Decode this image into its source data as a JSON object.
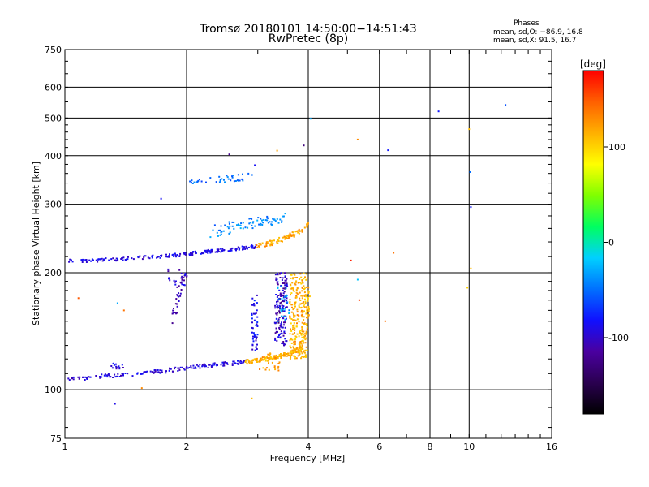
{
  "chart_data": {
    "type": "scatter",
    "title": "Tromsø 20180101 14:50:00−14:51:43",
    "subtitle": "RwPretec (8p)",
    "xlabel": "Frequency [MHz]",
    "ylabel": "Stationary phase Virtual Height [km]",
    "x_scale": "log",
    "y_scale": "log",
    "xlim": [
      1,
      16
    ],
    "ylim": [
      75,
      750
    ],
    "x_ticks": [
      1,
      2,
      4,
      6,
      8,
      10,
      16
    ],
    "y_ticks": [
      75,
      100,
      200,
      300,
      400,
      500,
      600,
      750
    ],
    "grid": true,
    "colorbar": {
      "label": "[deg]",
      "range": [
        -180,
        180
      ],
      "ticks": [
        -100,
        0,
        100
      ],
      "colors": [
        "#000000",
        "#2a0050",
        "#4a00a0",
        "#1010ff",
        "#0070ff",
        "#00d0ff",
        "#00ff60",
        "#80ff00",
        "#ffff00",
        "#ffb000",
        "#ff6000",
        "#ff0000"
      ]
    },
    "stats_title": "Phases",
    "stats": [
      "mean, sd,O: −86.9, 16.8",
      "mean, sd,X:  91.5, 16.7"
    ],
    "traces": [
      {
        "kind": "curve",
        "phase": -95,
        "jitter": 0.012,
        "per_mhz": 90,
        "points": [
          [
            1.0,
            106
          ],
          [
            1.2,
            108
          ],
          [
            1.5,
            110
          ],
          [
            1.8,
            112
          ],
          [
            2.0,
            114
          ],
          [
            2.4,
            116
          ],
          [
            2.8,
            118
          ]
        ]
      },
      {
        "kind": "curve",
        "phase": 115,
        "jitter": 0.012,
        "per_mhz": 120,
        "points": [
          [
            2.8,
            118
          ],
          [
            3.0,
            119
          ],
          [
            3.3,
            121
          ],
          [
            3.6,
            124
          ],
          [
            3.85,
            128
          ],
          [
            3.95,
            140
          ],
          [
            4.0,
            160
          ],
          [
            4.02,
            185
          ]
        ]
      },
      {
        "kind": "curve",
        "phase": -92,
        "jitter": 0.01,
        "per_mhz": 90,
        "points": [
          [
            1.0,
            214
          ],
          [
            1.3,
            216
          ],
          [
            1.6,
            219
          ],
          [
            1.9,
            222
          ],
          [
            2.2,
            226
          ],
          [
            2.6,
            230
          ],
          [
            3.0,
            234
          ]
        ]
      },
      {
        "kind": "curve",
        "phase": 120,
        "jitter": 0.015,
        "per_mhz": 80,
        "points": [
          [
            3.0,
            234
          ],
          [
            3.3,
            240
          ],
          [
            3.6,
            248
          ],
          [
            3.9,
            258
          ],
          [
            4.0,
            265
          ]
        ]
      },
      {
        "kind": "curve",
        "phase": -120,
        "jitter": 0.03,
        "per_mhz": 100,
        "points": [
          [
            3.35,
            145
          ],
          [
            3.4,
            160
          ],
          [
            3.45,
            175
          ],
          [
            3.5,
            185
          ],
          [
            3.55,
            195
          ]
        ]
      },
      {
        "kind": "curve",
        "phase": -40,
        "jitter": 0.03,
        "per_mhz": 60,
        "points": [
          [
            2.3,
            250
          ],
          [
            2.6,
            262
          ],
          [
            2.9,
            268
          ],
          [
            3.2,
            272
          ],
          [
            3.5,
            278
          ]
        ]
      },
      {
        "kind": "curve",
        "phase": -50,
        "jitter": 0.02,
        "per_mhz": 40,
        "points": [
          [
            2.0,
            340
          ],
          [
            2.3,
            345
          ],
          [
            2.6,
            350
          ],
          [
            2.9,
            355
          ]
        ]
      },
      {
        "kind": "curve",
        "phase": -110,
        "jitter": 0.03,
        "per_mhz": 100,
        "points": [
          [
            1.85,
            150
          ],
          [
            1.9,
            175
          ],
          [
            1.95,
            195
          ],
          [
            2.0,
            200
          ]
        ]
      }
    ],
    "clusters": [
      {
        "x": [
          1.3,
          1.4
        ],
        "y": [
          112,
          117
        ],
        "phase": -95,
        "n": 14
      },
      {
        "x": [
          2.9,
          3.0
        ],
        "y": [
          125,
          175
        ],
        "phase": -90,
        "n": 45
      },
      {
        "x": [
          3.3,
          3.55
        ],
        "y": [
          130,
          200
        ],
        "phase": -100,
        "n": 120
      },
      {
        "x": [
          3.35,
          3.6
        ],
        "y": [
          145,
          190
        ],
        "phase": -30,
        "n": 25
      },
      {
        "x": [
          3.6,
          3.98
        ],
        "y": [
          120,
          200
        ],
        "phase": 115,
        "n": 240
      },
      {
        "x": [
          3.0,
          3.4
        ],
        "y": [
          112,
          125
        ],
        "phase": 120,
        "n": 30
      },
      {
        "x": [
          1.8,
          2.0
        ],
        "y": [
          185,
          205
        ],
        "phase": -100,
        "n": 18
      }
    ],
    "points": [
      {
        "x": 1.33,
        "y": 92,
        "phase": -90
      },
      {
        "x": 1.08,
        "y": 172,
        "phase": 150
      },
      {
        "x": 1.35,
        "y": 167,
        "phase": -30
      },
      {
        "x": 1.4,
        "y": 160,
        "phase": 140
      },
      {
        "x": 1.55,
        "y": 101,
        "phase": 130
      },
      {
        "x": 1.73,
        "y": 310,
        "phase": -85
      },
      {
        "x": 2.55,
        "y": 403,
        "phase": -120
      },
      {
        "x": 2.95,
        "y": 378,
        "phase": -85
      },
      {
        "x": 3.35,
        "y": 412,
        "phase": 120
      },
      {
        "x": 3.9,
        "y": 425,
        "phase": -130
      },
      {
        "x": 4.05,
        "y": 498,
        "phase": -30
      },
      {
        "x": 5.3,
        "y": 440,
        "phase": 130
      },
      {
        "x": 6.3,
        "y": 413,
        "phase": -80
      },
      {
        "x": 8.4,
        "y": 520,
        "phase": -80
      },
      {
        "x": 12.3,
        "y": 540,
        "phase": -60
      },
      {
        "x": 10.0,
        "y": 468,
        "phase": 110
      },
      {
        "x": 10.05,
        "y": 363,
        "phase": -50
      },
      {
        "x": 10.1,
        "y": 295,
        "phase": -80
      },
      {
        "x": 10.1,
        "y": 205,
        "phase": 110
      },
      {
        "x": 6.5,
        "y": 225,
        "phase": 140
      },
      {
        "x": 5.1,
        "y": 215,
        "phase": 170
      },
      {
        "x": 5.3,
        "y": 192,
        "phase": -20
      },
      {
        "x": 5.35,
        "y": 170,
        "phase": 160
      },
      {
        "x": 6.2,
        "y": 150,
        "phase": 140
      },
      {
        "x": 2.9,
        "y": 95,
        "phase": 110
      },
      {
        "x": 9.9,
        "y": 183,
        "phase": 100
      },
      {
        "x": 2.35,
        "y": 265,
        "phase": -60
      },
      {
        "x": 2.55,
        "y": 270,
        "phase": -40
      }
    ]
  }
}
